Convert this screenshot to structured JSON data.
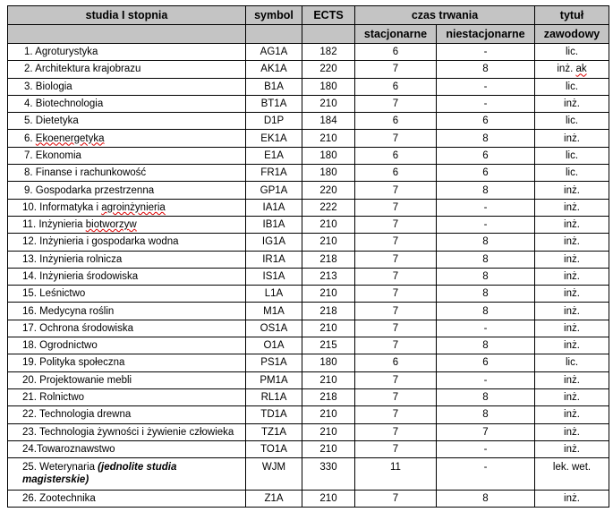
{
  "header": {
    "name": "studia I stopnia",
    "symbol": "symbol",
    "ects": "ECTS",
    "duration": "czas trwania",
    "title_top": "tytuł",
    "fulltime": "stacjonarne",
    "parttime": "niestacjonarne",
    "title_bottom": "zawodowy"
  },
  "rows": [
    {
      "name": "1. Agroturystyka",
      "symbol": "AG1A",
      "ects": "182",
      "full": "6",
      "part": "-",
      "title": "lic."
    },
    {
      "name": "2. Architektura krajobrazu",
      "symbol": "AK1A",
      "ects": "220",
      "full": "7",
      "part": "8",
      "title": "inż. ak"
    },
    {
      "name": "3. Biologia",
      "symbol": "B1A",
      "ects": "180",
      "full": "6",
      "part": "-",
      "title": "lic."
    },
    {
      "name": "4. Biotechnologia",
      "symbol": "BT1A",
      "ects": "210",
      "full": "7",
      "part": "-",
      "title": "inż."
    },
    {
      "name": "5. Dietetyka",
      "symbol": "D1P",
      "ects": "184",
      "full": "6",
      "part": "6",
      "title": "lic."
    },
    {
      "name": "6. Ekoenergetyka",
      "symbol": "EK1A",
      "ects": "210",
      "full": "7",
      "part": "8",
      "title": "inż."
    },
    {
      "name": "7. Ekonomia",
      "symbol": "E1A",
      "ects": "180",
      "full": "6",
      "part": "6",
      "title": "lic."
    },
    {
      "name": "8. Finanse i rachunkowość",
      "symbol": "FR1A",
      "ects": "180",
      "full": "6",
      "part": "6",
      "title": "lic."
    },
    {
      "name": "9. Gospodarka przestrzenna",
      "symbol": "GP1A",
      "ects": "220",
      "full": "7",
      "part": "8",
      "title": "inż."
    },
    {
      "name": "10. Informatyka i agroinżynieria",
      "symbol": "IA1A",
      "ects": "222",
      "full": "7",
      "part": "-",
      "title": "inż."
    },
    {
      "name": "11. Inżynieria biotworzyw",
      "symbol": "IB1A",
      "ects": "210",
      "full": "7",
      "part": "-",
      "title": "inż."
    },
    {
      "name": "12. Inżynieria i gospodarka wodna",
      "symbol": "IG1A",
      "ects": "210",
      "full": "7",
      "part": "8",
      "title": "inż."
    },
    {
      "name": "13. Inżynieria rolnicza",
      "symbol": "IR1A",
      "ects": "218",
      "full": "7",
      "part": "8",
      "title": "inż."
    },
    {
      "name": "14. Inżynieria środowiska",
      "symbol": "IS1A",
      "ects": "213",
      "full": "7",
      "part": "8",
      "title": "inż."
    },
    {
      "name": "15. Leśnictwo",
      "symbol": "L1A",
      "ects": "210",
      "full": "7",
      "part": "8",
      "title": "inż."
    },
    {
      "name": "16. Medycyna roślin",
      "symbol": "M1A",
      "ects": "218",
      "full": "7",
      "part": "8",
      "title": "inż."
    },
    {
      "name": "17. Ochrona środowiska",
      "symbol": "OS1A",
      "ects": "210",
      "full": "7",
      "part": "-",
      "title": "inż."
    },
    {
      "name": "18. Ogrodnictwo",
      "symbol": "O1A",
      "ects": "215",
      "full": "7",
      "part": "8",
      "title": "inż."
    },
    {
      "name": "19. Polityka społeczna",
      "symbol": "PS1A",
      "ects": "180",
      "full": "6",
      "part": "6",
      "title": "lic."
    },
    {
      "name": "20. Projektowanie mebli",
      "symbol": "PM1A",
      "ects": "210",
      "full": "7",
      "part": "-",
      "title": "inż."
    },
    {
      "name": "21. Rolnictwo",
      "symbol": "RL1A",
      "ects": "218",
      "full": "7",
      "part": "8",
      "title": "inż."
    },
    {
      "name": "22. Technologia drewna",
      "symbol": "TD1A",
      "ects": "210",
      "full": "7",
      "part": "8",
      "title": "inż."
    },
    {
      "name": "23. Technologia żywności i żywienie człowieka",
      "symbol": "TZ1A",
      "ects": "210",
      "full": "7",
      "part": "7",
      "title": "inż."
    },
    {
      "name": "24.Towaroznawstwo",
      "symbol": "TO1A",
      "ects": "210",
      "full": "7",
      "part": "-",
      "title": "inż."
    },
    {
      "name": "25. Weterynaria",
      "note": "(jednolite studia magisterskie)",
      "symbol": "WJM",
      "ects": "330",
      "full": "11",
      "part": "-",
      "title": "lek. wet."
    },
    {
      "name": "26. Zootechnika",
      "symbol": "Z1A",
      "ects": "210",
      "full": "7",
      "part": "8",
      "title": "inż."
    }
  ]
}
